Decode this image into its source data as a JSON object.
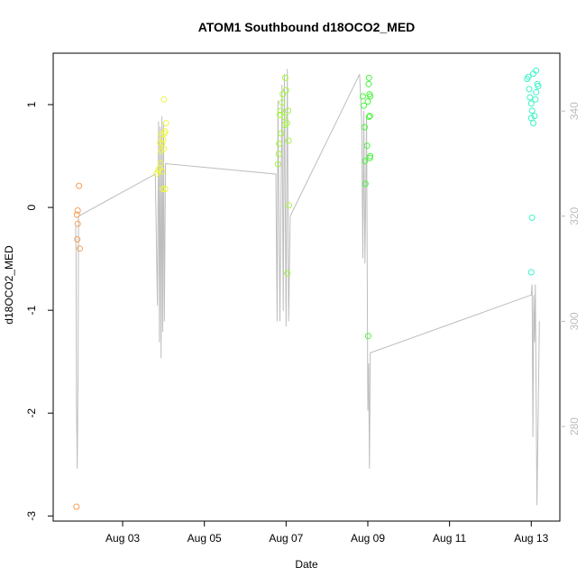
{
  "chart_data": {
    "type": "scatter",
    "title": "ATOM1 Southbound d18OCO2_MED",
    "xlabel": "Date",
    "ylabel": "d18OCO2_MED",
    "x_unit": "day of August",
    "xlim": [
      1.3,
      13.7
    ],
    "ylim": [
      -3.05,
      1.5
    ],
    "x_ticks": [
      {
        "value": 3,
        "label": "Aug 03"
      },
      {
        "value": 5,
        "label": "Aug 05"
      },
      {
        "value": 7,
        "label": "Aug 07"
      },
      {
        "value": 9,
        "label": "Aug 09"
      },
      {
        "value": 11,
        "label": "Aug 11"
      },
      {
        "value": 13,
        "label": "Aug 13"
      }
    ],
    "y_ticks": [
      {
        "value": 1,
        "label": "1"
      },
      {
        "value": 0,
        "label": "0"
      },
      {
        "value": -1,
        "label": "-1"
      },
      {
        "value": -2,
        "label": "-2"
      },
      {
        "value": -3,
        "label": "-3"
      }
    ],
    "y2_ticks": [
      {
        "value": 340,
        "label": "340"
      },
      {
        "value": 320,
        "label": "320"
      },
      {
        "value": 300,
        "label": "300"
      },
      {
        "value": 280,
        "label": "280"
      }
    ],
    "y2lim": [
      262,
      351
    ],
    "grid": false,
    "series": [
      {
        "color": "#f5a05a",
        "points": [
          [
            1.93,
            0.21
          ],
          [
            1.9,
            -0.03
          ],
          [
            1.88,
            -0.07
          ],
          [
            1.9,
            -0.16
          ],
          [
            1.89,
            -0.31
          ],
          [
            1.95,
            -0.4
          ],
          [
            1.87,
            -2.91
          ]
        ]
      },
      {
        "color": "#eef542",
        "points": [
          [
            3.83,
            0.33
          ],
          [
            3.87,
            0.36
          ],
          [
            3.9,
            0.38
          ],
          [
            3.93,
            0.43
          ],
          [
            3.94,
            0.55
          ],
          [
            3.97,
            0.62
          ],
          [
            3.99,
            0.66
          ],
          [
            4.0,
            0.57
          ],
          [
            4.02,
            0.72
          ],
          [
            4.04,
            0.74
          ],
          [
            4.06,
            0.82
          ],
          [
            4.01,
            1.05
          ],
          [
            3.98,
            0.18
          ],
          [
            4.04,
            0.18
          ],
          [
            3.95,
            0.71
          ],
          [
            3.92,
            0.63
          ],
          [
            3.97,
            0.35
          ]
        ]
      },
      {
        "color": "#a3f53c",
        "points": [
          [
            6.8,
            0.42
          ],
          [
            6.82,
            0.52
          ],
          [
            6.83,
            0.62
          ],
          [
            6.85,
            0.9
          ],
          [
            6.87,
            0.94
          ],
          [
            6.9,
            1.02
          ],
          [
            6.92,
            1.1
          ],
          [
            6.95,
            0.88
          ],
          [
            6.97,
            0.8
          ],
          [
            6.98,
            1.26
          ],
          [
            7.0,
            1.14
          ],
          [
            7.02,
            0.82
          ],
          [
            7.05,
            0.94
          ],
          [
            7.06,
            0.65
          ],
          [
            7.07,
            0.02
          ],
          [
            7.03,
            -0.64
          ],
          [
            6.88,
            0.72
          ]
        ]
      },
      {
        "color": "#48f53c",
        "points": [
          [
            8.88,
            1.08
          ],
          [
            8.9,
            0.99
          ],
          [
            8.92,
            0.78
          ],
          [
            8.93,
            0.45
          ],
          [
            8.94,
            0.23
          ],
          [
            8.98,
            0.6
          ],
          [
            9.0,
            1.03
          ],
          [
            9.02,
            1.2
          ],
          [
            9.03,
            1.26
          ],
          [
            9.04,
            1.1
          ],
          [
            9.05,
            0.89
          ],
          [
            9.06,
            0.5
          ],
          [
            9.05,
            0.48
          ],
          [
            9.03,
            0.88
          ],
          [
            9.06,
            1.08
          ],
          [
            9.01,
            -1.25
          ]
        ]
      },
      {
        "color": "#3cf5c8",
        "points": [
          [
            12.9,
            1.25
          ],
          [
            12.93,
            1.27
          ],
          [
            12.95,
            1.15
          ],
          [
            12.97,
            1.07
          ],
          [
            13.0,
            1.01
          ],
          [
            13.02,
            0.94
          ],
          [
            13.05,
            0.82
          ],
          [
            13.08,
            0.89
          ],
          [
            13.1,
            1.05
          ],
          [
            13.12,
            1.12
          ],
          [
            13.15,
            1.2
          ],
          [
            13.17,
            1.18
          ],
          [
            13.12,
            1.33
          ],
          [
            13.0,
            0.87
          ],
          [
            13.02,
            -0.1
          ],
          [
            13.0,
            -0.63
          ],
          [
            13.05,
            1.3
          ]
        ]
      }
    ],
    "background_trace": {
      "color": "#bdbdbd",
      "axis": "right",
      "points": [
        [
          1.85,
          318
        ],
        [
          1.86,
          312
        ],
        [
          1.87,
          285
        ],
        [
          1.88,
          278
        ],
        [
          1.89,
          272
        ],
        [
          1.9,
          284
        ],
        [
          1.91,
          289
        ],
        [
          1.92,
          320
        ],
        [
          3.8,
          328
        ],
        [
          3.85,
          303
        ],
        [
          3.88,
          338
        ],
        [
          3.9,
          296
        ],
        [
          3.92,
          337
        ],
        [
          3.94,
          293
        ],
        [
          3.96,
          339
        ],
        [
          3.98,
          298
        ],
        [
          4.0,
          338
        ],
        [
          4.02,
          300
        ],
        [
          4.05,
          330
        ],
        [
          6.75,
          328
        ],
        [
          6.78,
          300
        ],
        [
          6.8,
          342
        ],
        [
          6.85,
          300
        ],
        [
          6.9,
          345
        ],
        [
          6.93,
          302
        ],
        [
          6.96,
          347
        ],
        [
          7.0,
          299
        ],
        [
          7.03,
          348
        ],
        [
          7.06,
          300
        ],
        [
          7.1,
          320
        ],
        [
          8.8,
          347
        ],
        [
          8.85,
          338
        ],
        [
          8.88,
          312
        ],
        [
          8.9,
          340
        ],
        [
          8.93,
          311
        ],
        [
          8.97,
          339
        ],
        [
          9.0,
          283
        ],
        [
          9.02,
          292
        ],
        [
          9.04,
          272
        ],
        [
          9.06,
          294
        ],
        [
          13.0,
          305
        ],
        [
          13.02,
          307
        ],
        [
          13.04,
          278
        ],
        [
          13.06,
          305
        ],
        [
          13.08,
          296
        ],
        [
          13.1,
          307
        ],
        [
          13.14,
          265
        ],
        [
          13.2,
          300
        ]
      ]
    }
  }
}
